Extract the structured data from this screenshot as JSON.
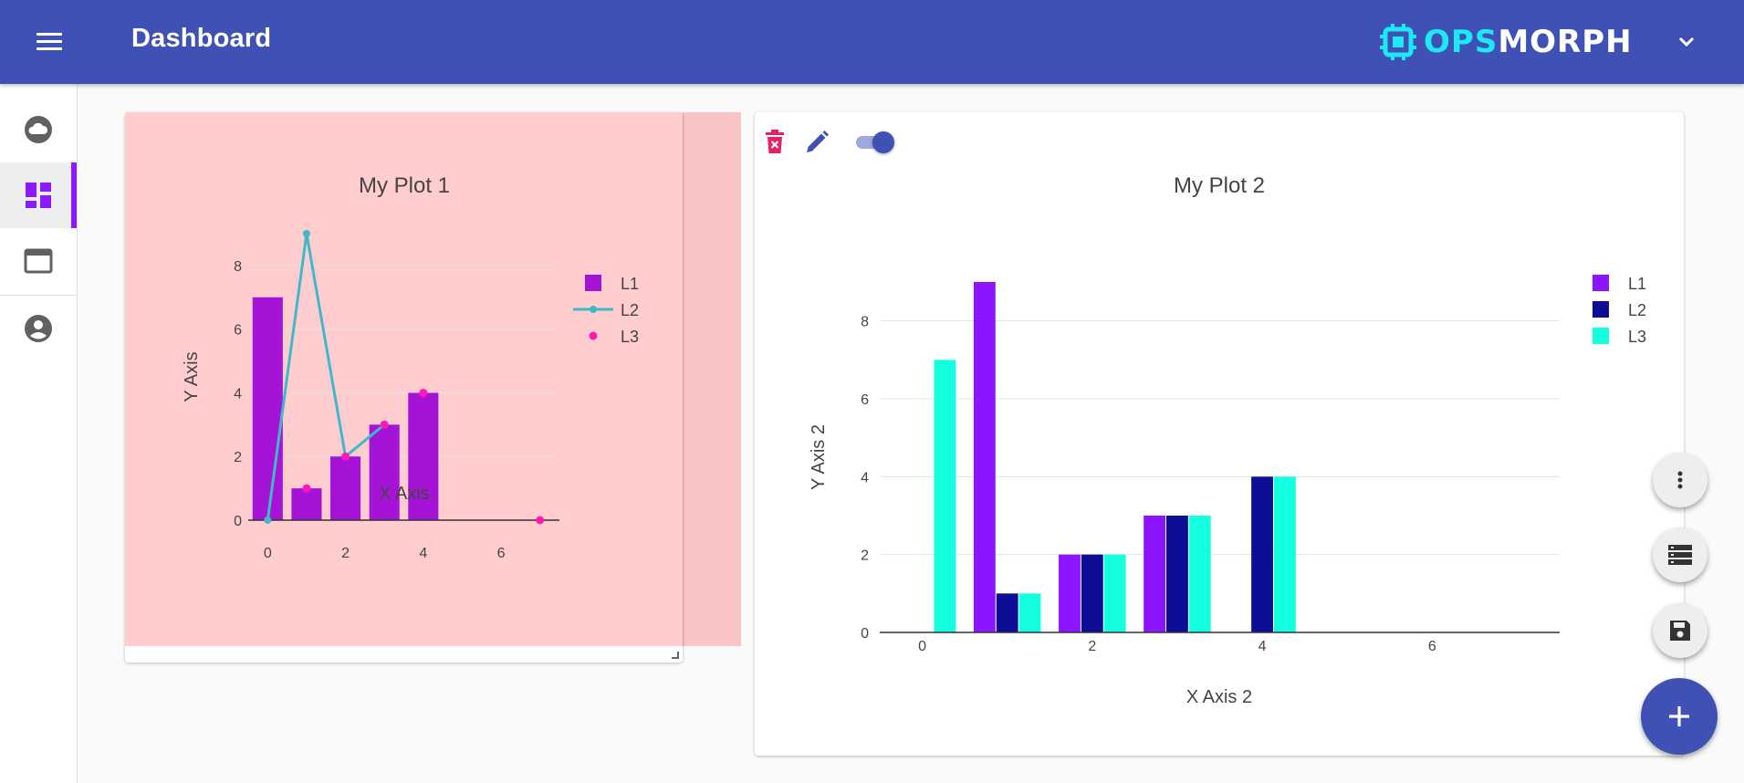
{
  "appbar": {
    "title": "Dashboard",
    "logo_ops": "OPS",
    "logo_morph": "MORPH"
  },
  "sidebar": {
    "items": [
      {
        "icon": "cloud-icon",
        "active": false
      },
      {
        "icon": "dashboard-icon",
        "active": true
      },
      {
        "icon": "window-icon",
        "active": false
      },
      {
        "icon": "account-circle-icon",
        "active": false
      }
    ]
  },
  "colors": {
    "appbar": "#3f51b5",
    "accent": "#8c1aff",
    "plot1_bg": "#ffcdcd",
    "delete": "#e91e63"
  },
  "chart_data": [
    {
      "type": "bar",
      "title": "My Plot 1",
      "xlabel": "X Axis",
      "ylabel": "Y Axis",
      "xlim": [
        -0.5,
        7.5
      ],
      "ylim": [
        0,
        9
      ],
      "xticks": [
        "0",
        "2",
        "4",
        "6"
      ],
      "yticks": [
        "0",
        "2",
        "4",
        "6",
        "8"
      ],
      "legend": "top-right",
      "series": [
        {
          "name": "L1",
          "kind": "bar",
          "color": "#a514d6",
          "x": [
            0,
            1,
            2,
            3,
            4
          ],
          "y": [
            7,
            1,
            2,
            3,
            4
          ]
        },
        {
          "name": "L2",
          "kind": "line",
          "color": "#3fb8c9",
          "x": [
            0,
            1,
            2,
            3
          ],
          "y": [
            0,
            9,
            2,
            3
          ]
        },
        {
          "name": "L3",
          "kind": "scatter",
          "color": "#ff1ab8",
          "x": [
            1,
            2,
            3,
            4,
            7
          ],
          "y": [
            1,
            2,
            3,
            4,
            0
          ]
        }
      ]
    },
    {
      "type": "bar",
      "title": "My Plot 2",
      "xlabel": "X Axis 2",
      "ylabel": "Y Axis 2",
      "xlim": [
        -0.5,
        7.5
      ],
      "ylim": [
        0,
        9
      ],
      "xticks": [
        "0",
        "2",
        "4",
        "6"
      ],
      "yticks": [
        "0",
        "2",
        "4",
        "6",
        "8"
      ],
      "legend": "top-right",
      "series": [
        {
          "name": "L1",
          "kind": "bar",
          "color": "#8c14ff",
          "x": [
            0,
            1,
            2,
            3,
            4
          ],
          "y": [
            0,
            9,
            2,
            3,
            0
          ]
        },
        {
          "name": "L2",
          "kind": "bar",
          "color": "#0d0d96",
          "x": [
            0,
            1,
            2,
            3,
            4
          ],
          "y": [
            0,
            1,
            2,
            3,
            4
          ]
        },
        {
          "name": "L3",
          "kind": "bar",
          "color": "#14ffe0",
          "x": [
            0,
            1,
            2,
            3,
            4
          ],
          "y": [
            7,
            1,
            2,
            3,
            4
          ]
        }
      ]
    }
  ]
}
